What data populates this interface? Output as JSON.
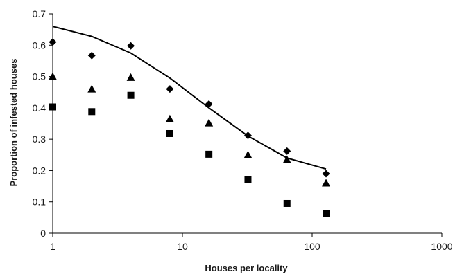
{
  "chart_data": {
    "type": "scatter",
    "title": "",
    "xlabel": "Houses per locality",
    "ylabel": "Proportion of infested houses",
    "x_scale": "log",
    "xlim": [
      1,
      1000
    ],
    "ylim": [
      0,
      0.7
    ],
    "x_ticks": [
      1,
      10,
      100,
      1000
    ],
    "x_tick_labels": [
      "1",
      "10",
      "100",
      "1000"
    ],
    "y_ticks": [
      0,
      0.1,
      0.2,
      0.3,
      0.4,
      0.5,
      0.6,
      0.7
    ],
    "y_tick_labels": [
      "0",
      "0.1",
      "0.2",
      "0.3",
      "0.4",
      "0.5",
      "0.6",
      "0.7"
    ],
    "grid": false,
    "legend": "none",
    "x": [
      1,
      2,
      4,
      8,
      16,
      32,
      64,
      128
    ],
    "series": [
      {
        "marker": "diamond",
        "color": "#000000",
        "values": [
          0.61,
          0.567,
          0.598,
          0.46,
          0.412,
          0.312,
          0.262,
          0.19
        ]
      },
      {
        "marker": "triangle",
        "color": "#000000",
        "values": [
          0.5,
          0.46,
          0.497,
          0.365,
          0.352,
          0.25,
          0.235,
          0.16
        ]
      },
      {
        "marker": "square",
        "color": "#000000",
        "values": [
          0.403,
          0.388,
          0.44,
          0.318,
          0.252,
          0.172,
          0.095,
          0.062
        ]
      },
      {
        "marker": "line",
        "color": "#000000",
        "values": [
          0.66,
          0.628,
          0.575,
          0.495,
          0.4,
          0.31,
          0.24,
          0.205
        ]
      }
    ]
  }
}
